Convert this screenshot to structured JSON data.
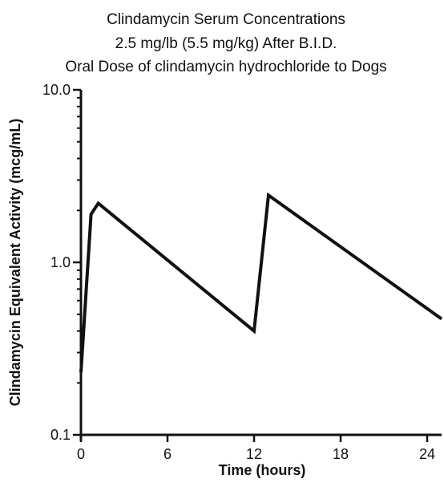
{
  "chart_data": {
    "type": "line",
    "title_lines": [
      "Clindamycin Serum Concentrations",
      "2.5 mg/lb (5.5 mg/kg) After B.I.D.",
      "Oral Dose of clindamycin hydrochloride to Dogs"
    ],
    "xlabel": "Time (hours)",
    "ylabel": "Clindamycin Equivalent Activity (mcg/mL)",
    "xlim": [
      0,
      25
    ],
    "ylim": [
      0.1,
      10.0
    ],
    "yscale": "log",
    "x_ticks": [
      0,
      6,
      12,
      18,
      24
    ],
    "x_tick_labels": [
      "0",
      "6",
      "12",
      "18",
      "24"
    ],
    "y_ticks": [
      0.1,
      1.0,
      10.0
    ],
    "y_tick_labels": [
      "0.1",
      "1.0",
      "10.0"
    ],
    "grid": false,
    "legend": "none",
    "series": [
      {
        "x": [
          0,
          0.7,
          1.2,
          12,
          13,
          25
        ],
        "y": [
          0.23,
          1.9,
          2.2,
          0.4,
          2.45,
          0.47
        ]
      }
    ],
    "colors": {
      "line": "#111111",
      "axis": "#111111"
    }
  }
}
